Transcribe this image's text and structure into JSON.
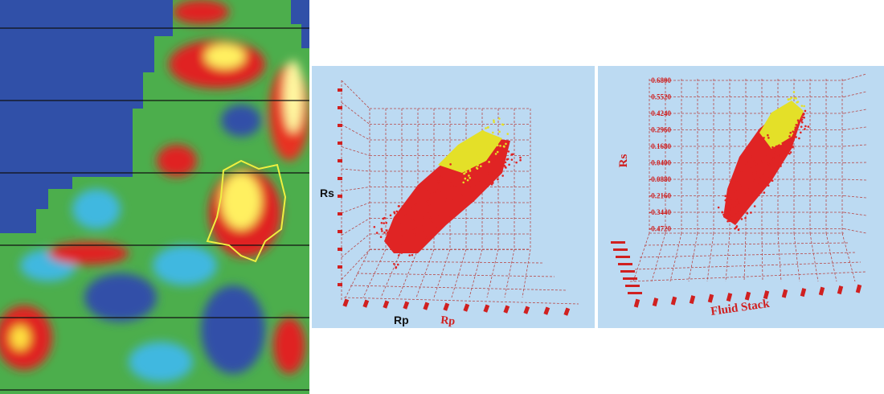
{
  "middle_plot": {
    "y_axis_label": "Rs",
    "x_axis_label": "Rp",
    "x_axis_label_3d": "Rp"
  },
  "right_plot": {
    "y_axis_label": "Rs",
    "x_axis_label": "Fluid Stack",
    "y_ticks": [
      "0.6800",
      "0.5520",
      "0.4240",
      "0.2960",
      "0.1680",
      "0.0400",
      "-0.0880",
      "-0.2160",
      "-0.3440",
      "-0.4720"
    ]
  }
}
